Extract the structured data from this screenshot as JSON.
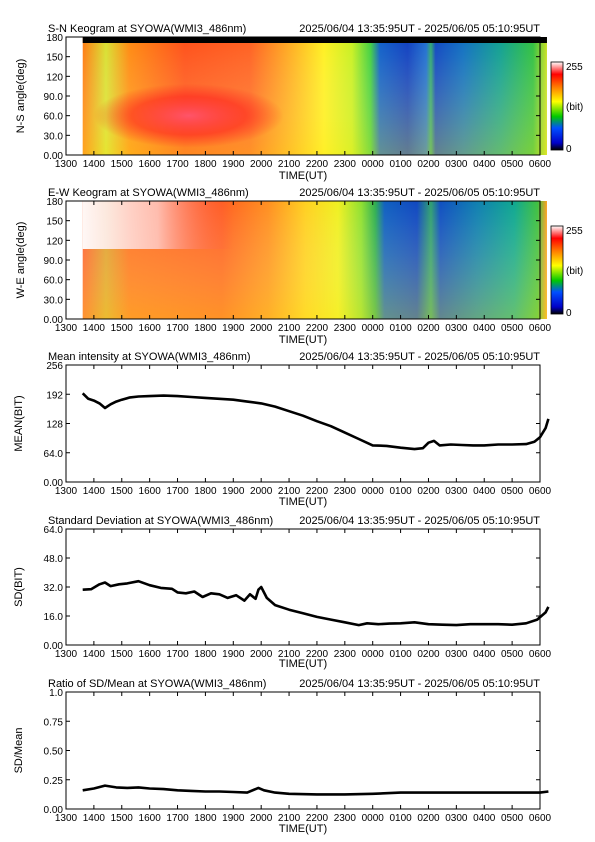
{
  "chart_data": [
    {
      "type": "heatmap",
      "title": "S-N Keogram at SYOWA(WMI3_486nm)",
      "time_range": "2025/06/04 13:35:95UT - 2025/06/05 05:10:95UT",
      "xlabel": "TIME(UT)",
      "ylabel": "N-S angle(deg)",
      "x_ticks": [
        "1300",
        "1400",
        "1500",
        "1600",
        "1700",
        "1800",
        "1900",
        "2000",
        "2100",
        "2200",
        "2300",
        "0000",
        "0100",
        "0200",
        "0300",
        "0400",
        "0500",
        "0600"
      ],
      "y_ticks": [
        "0.00",
        "30.0",
        "60.0",
        "90.0",
        "120",
        "150",
        "180"
      ],
      "ylim": [
        0,
        180
      ],
      "colorbar": {
        "max_label": "255",
        "unit_label": "(bit)",
        "min_label": "0"
      }
    },
    {
      "type": "heatmap",
      "title": "E-W Keogram at SYOWA(WMI3_486nm)",
      "time_range": "2025/06/04 13:35:95UT - 2025/06/05 05:10:95UT",
      "xlabel": "TIME(UT)",
      "ylabel": "W-E angle(deg)",
      "x_ticks": [
        "1300",
        "1400",
        "1500",
        "1600",
        "1700",
        "1800",
        "1900",
        "2000",
        "2100",
        "2200",
        "2300",
        "0000",
        "0100",
        "0200",
        "0300",
        "0400",
        "0500",
        "0600"
      ],
      "y_ticks": [
        "0.00",
        "30.0",
        "60.0",
        "90.0",
        "120",
        "150",
        "180"
      ],
      "ylim": [
        0,
        180
      ],
      "colorbar": {
        "max_label": "255",
        "unit_label": "(bit)",
        "min_label": "0"
      }
    },
    {
      "type": "line",
      "title": "Mean intensity at SYOWA(WMI3_486nm)",
      "time_range": "2025/06/04 13:35:95UT - 2025/06/05 05:10:95UT",
      "xlabel": "TIME(UT)",
      "ylabel": "MEAN(BIT)",
      "x_ticks": [
        "1300",
        "1400",
        "1500",
        "1600",
        "1700",
        "1800",
        "1900",
        "2000",
        "2100",
        "2200",
        "2300",
        "0000",
        "0100",
        "0200",
        "0300",
        "0400",
        "0500",
        "0600"
      ],
      "y_ticks": [
        "0.00",
        "64.0",
        "128",
        "192",
        "256"
      ],
      "ylim": [
        0,
        256
      ],
      "series": [
        {
          "values": [
            [
              13.6,
              194
            ],
            [
              13.8,
              182
            ],
            [
              14.0,
              178
            ],
            [
              14.2,
              172
            ],
            [
              14.4,
              162
            ],
            [
              14.6,
              170
            ],
            [
              14.8,
              176
            ],
            [
              15.0,
              180
            ],
            [
              15.3,
              185
            ],
            [
              15.6,
              187
            ],
            [
              16.0,
              188
            ],
            [
              16.5,
              189
            ],
            [
              17.0,
              188
            ],
            [
              17.5,
              186
            ],
            [
              18.0,
              184
            ],
            [
              18.5,
              182
            ],
            [
              19.0,
              180
            ],
            [
              19.5,
              176
            ],
            [
              20.0,
              172
            ],
            [
              20.5,
              165
            ],
            [
              21.0,
              155
            ],
            [
              21.5,
              145
            ],
            [
              22.0,
              133
            ],
            [
              22.5,
              122
            ],
            [
              23.0,
              108
            ],
            [
              23.5,
              94
            ],
            [
              24.0,
              80
            ],
            [
              24.5,
              79
            ],
            [
              25.0,
              75
            ],
            [
              25.5,
              72
            ],
            [
              25.8,
              74
            ],
            [
              26.0,
              86
            ],
            [
              26.2,
              90
            ],
            [
              26.4,
              80
            ],
            [
              26.8,
              82
            ],
            [
              27.2,
              81
            ],
            [
              27.6,
              80
            ],
            [
              28.0,
              80
            ],
            [
              28.5,
              82
            ],
            [
              29.0,
              82
            ],
            [
              29.5,
              83
            ],
            [
              29.8,
              88
            ],
            [
              30.0,
              98
            ],
            [
              30.2,
              118
            ],
            [
              30.3,
              138
            ]
          ]
        }
      ]
    },
    {
      "type": "line",
      "title": "Standard Deviation at SYOWA(WMI3_486nm)",
      "time_range": "2025/06/04 13:35:95UT - 2025/06/05 05:10:95UT",
      "xlabel": "TIME(UT)",
      "ylabel": "SD(BIT)",
      "x_ticks": [
        "1300",
        "1400",
        "1500",
        "1600",
        "1700",
        "1800",
        "1900",
        "2000",
        "2100",
        "2200",
        "2300",
        "0000",
        "0100",
        "0200",
        "0300",
        "0400",
        "0500",
        "0600"
      ],
      "y_ticks": [
        "0.00",
        "16.0",
        "32.0",
        "48.0",
        "64.0"
      ],
      "ylim": [
        0,
        64
      ],
      "series": [
        {
          "values": [
            [
              13.6,
              30.5
            ],
            [
              13.9,
              30.8
            ],
            [
              14.2,
              33.5
            ],
            [
              14.4,
              34.5
            ],
            [
              14.6,
              32.5
            ],
            [
              14.9,
              33.5
            ],
            [
              15.2,
              34.0
            ],
            [
              15.6,
              35.2
            ],
            [
              16.0,
              33.0
            ],
            [
              16.4,
              31.5
            ],
            [
              16.8,
              31.0
            ],
            [
              17.0,
              29.0
            ],
            [
              17.3,
              28.5
            ],
            [
              17.6,
              29.5
            ],
            [
              17.9,
              26.5
            ],
            [
              18.2,
              28.5
            ],
            [
              18.5,
              28.0
            ],
            [
              18.8,
              26.0
            ],
            [
              19.1,
              27.5
            ],
            [
              19.4,
              24.5
            ],
            [
              19.6,
              28.0
            ],
            [
              19.8,
              25.5
            ],
            [
              19.9,
              30.5
            ],
            [
              20.0,
              32.0
            ],
            [
              20.2,
              26.0
            ],
            [
              20.5,
              22.0
            ],
            [
              21.0,
              19.5
            ],
            [
              21.5,
              17.5
            ],
            [
              22.0,
              15.5
            ],
            [
              22.5,
              14.0
            ],
            [
              23.0,
              12.5
            ],
            [
              23.5,
              11.0
            ],
            [
              23.8,
              12.0
            ],
            [
              24.2,
              11.5
            ],
            [
              24.6,
              11.8
            ],
            [
              25.0,
              12.0
            ],
            [
              25.5,
              12.5
            ],
            [
              26.0,
              11.5
            ],
            [
              26.5,
              11.2
            ],
            [
              27.0,
              11.0
            ],
            [
              27.5,
              11.5
            ],
            [
              28.0,
              11.5
            ],
            [
              28.5,
              11.5
            ],
            [
              29.0,
              11.2
            ],
            [
              29.5,
              12.0
            ],
            [
              29.9,
              14.0
            ],
            [
              30.2,
              18.0
            ],
            [
              30.3,
              21.0
            ]
          ]
        }
      ]
    },
    {
      "type": "line",
      "title": "Ratio of SD/Mean at SYOWA(WMI3_486nm)",
      "time_range": "2025/06/04 13:35:95UT - 2025/06/05 05:10:95UT",
      "xlabel": "TIME(UT)",
      "ylabel": "SD/Mean",
      "x_ticks": [
        "1300",
        "1400",
        "1500",
        "1600",
        "1700",
        "1800",
        "1900",
        "2000",
        "2100",
        "2200",
        "2300",
        "0000",
        "0100",
        "0200",
        "0300",
        "0400",
        "0500",
        "0600"
      ],
      "y_ticks": [
        "0.00",
        "0.25",
        "0.50",
        "0.75",
        "1.0"
      ],
      "ylim": [
        0,
        1.0
      ],
      "series": [
        {
          "values": [
            [
              13.6,
              0.16
            ],
            [
              14.0,
              0.175
            ],
            [
              14.4,
              0.2
            ],
            [
              14.8,
              0.185
            ],
            [
              15.2,
              0.18
            ],
            [
              15.6,
              0.185
            ],
            [
              16.0,
              0.175
            ],
            [
              16.5,
              0.17
            ],
            [
              17.0,
              0.16
            ],
            [
              17.5,
              0.155
            ],
            [
              18.0,
              0.15
            ],
            [
              18.5,
              0.15
            ],
            [
              19.0,
              0.145
            ],
            [
              19.5,
              0.14
            ],
            [
              19.9,
              0.18
            ],
            [
              20.1,
              0.16
            ],
            [
              20.5,
              0.14
            ],
            [
              21.0,
              0.13
            ],
            [
              22.0,
              0.125
            ],
            [
              23.0,
              0.125
            ],
            [
              24.0,
              0.13
            ],
            [
              25.0,
              0.14
            ],
            [
              26.0,
              0.14
            ],
            [
              27.0,
              0.14
            ],
            [
              28.0,
              0.14
            ],
            [
              29.0,
              0.14
            ],
            [
              30.0,
              0.14
            ],
            [
              30.3,
              0.15
            ]
          ]
        }
      ]
    }
  ]
}
